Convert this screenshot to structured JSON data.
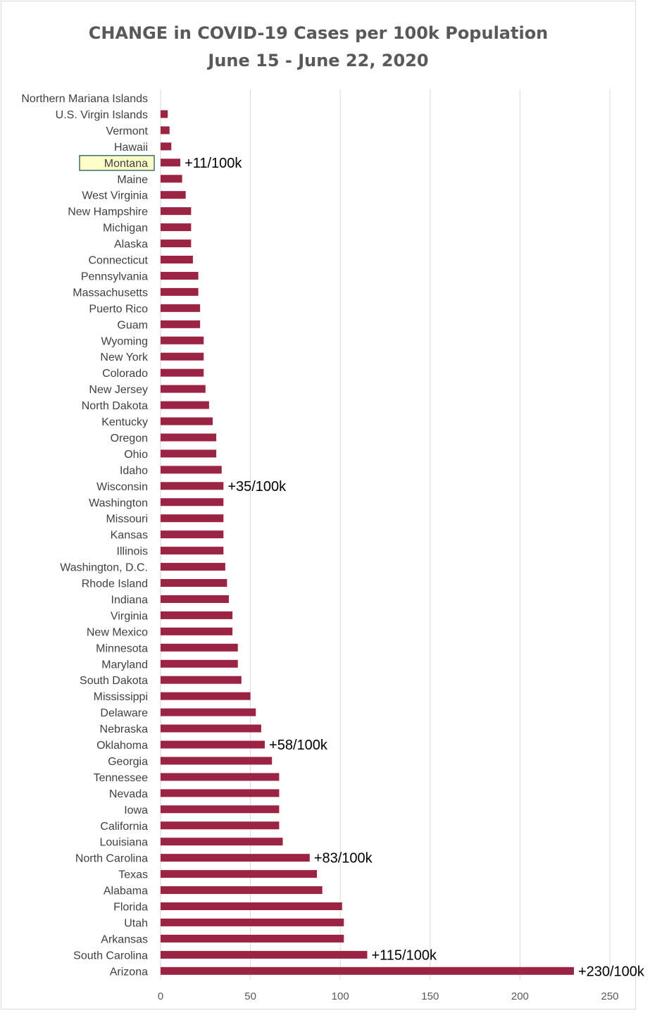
{
  "chart_data": {
    "type": "bar",
    "orientation": "horizontal",
    "title": "CHANGE in COVID-19 Cases per 100k Population",
    "subtitle": "June 15 - June 22, 2020",
    "xlabel": "",
    "ylabel": "",
    "xlim": [
      0,
      250
    ],
    "x_ticks": [
      0,
      50,
      100,
      150,
      200,
      250
    ],
    "grid": true,
    "legend": "none",
    "bar_color": "#9b2444",
    "highlight_box_color": "#fffdc8",
    "highlight_border_color": "#3b6e6e",
    "highlighted_category": "Montana",
    "categories": [
      "Northern Mariana Islands",
      "U.S. Virgin Islands",
      "Vermont",
      "Hawaii",
      "Montana",
      "Maine",
      "West Virginia",
      "New Hampshire",
      "Michigan",
      "Alaska",
      "Connecticut",
      "Pennsylvania",
      "Massachusetts",
      "Puerto Rico",
      "Guam",
      "Wyoming",
      "New York",
      "Colorado",
      "New Jersey",
      "North Dakota",
      "Kentucky",
      "Oregon",
      "Ohio",
      "Idaho",
      "Wisconsin",
      "Washington",
      "Missouri",
      "Kansas",
      "Illinois",
      "Washington, D.C.",
      "Rhode Island",
      "Indiana",
      "Virginia",
      "New Mexico",
      "Minnesota",
      "Maryland",
      "South Dakota",
      "Mississippi",
      "Delaware",
      "Nebraska",
      "Oklahoma",
      "Georgia",
      "Tennessee",
      "Nevada",
      "Iowa",
      "California",
      "Louisiana",
      "North Carolina",
      "Texas",
      "Alabama",
      "Florida",
      "Utah",
      "Arkansas",
      "South Carolina",
      "Arizona"
    ],
    "values": [
      0,
      4,
      5,
      6,
      11,
      12,
      14,
      17,
      17,
      17,
      18,
      21,
      21,
      22,
      22,
      24,
      24,
      24,
      25,
      27,
      29,
      31,
      31,
      34,
      35,
      35,
      35,
      35,
      35,
      36,
      37,
      38,
      40,
      40,
      43,
      43,
      45,
      50,
      53,
      56,
      58,
      62,
      66,
      66,
      66,
      66,
      68,
      83,
      87,
      90,
      101,
      102,
      102,
      115,
      230
    ],
    "annotations": [
      {
        "category": "Montana",
        "text": "+11/100k"
      },
      {
        "category": "Wisconsin",
        "text": "+35/100k"
      },
      {
        "category": "Oklahoma",
        "text": "+58/100k"
      },
      {
        "category": "North Carolina",
        "text": "+83/100k"
      },
      {
        "category": "South Carolina",
        "text": "+115/100k"
      },
      {
        "category": "Arizona",
        "text": "+230/100k"
      }
    ]
  }
}
